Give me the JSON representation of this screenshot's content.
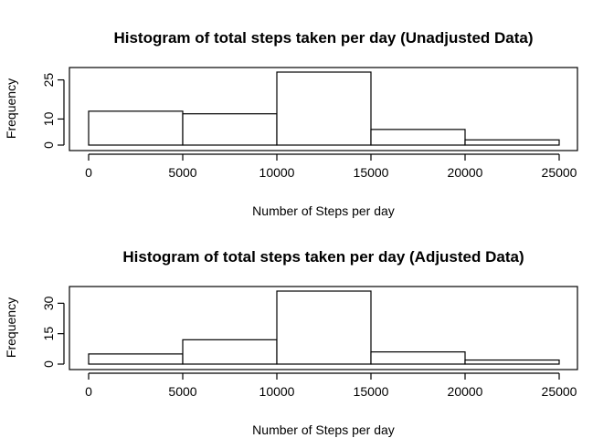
{
  "chart_data": [
    {
      "type": "bar",
      "title": "Histogram of total steps taken per day (Unadjusted Data)",
      "xlabel": "Number of Steps per day",
      "ylabel": "Frequency",
      "bins": [
        [
          0,
          5000
        ],
        [
          5000,
          10000
        ],
        [
          10000,
          15000
        ],
        [
          15000,
          20000
        ],
        [
          20000,
          25000
        ]
      ],
      "values": [
        13,
        12,
        28,
        6,
        2
      ],
      "xlim": [
        0,
        25000
      ],
      "ylim": [
        0,
        28
      ],
      "xticks": [
        "0",
        "5000",
        "10000",
        "15000",
        "20000",
        "25000"
      ],
      "yticks": [
        "0",
        "10",
        "25"
      ]
    },
    {
      "type": "bar",
      "title": "Histogram of total steps taken per day (Adjusted Data)",
      "xlabel": "Number of Steps per day",
      "ylabel": "Frequency",
      "bins": [
        [
          0,
          5000
        ],
        [
          5000,
          10000
        ],
        [
          10000,
          15000
        ],
        [
          15000,
          20000
        ],
        [
          20000,
          25000
        ]
      ],
      "values": [
        5,
        12,
        36,
        6,
        2
      ],
      "xlim": [
        0,
        25000
      ],
      "ylim": [
        0,
        36
      ],
      "xticks": [
        "0",
        "5000",
        "10000",
        "15000",
        "20000",
        "25000"
      ],
      "yticks": [
        "0",
        "15",
        "30"
      ]
    }
  ]
}
